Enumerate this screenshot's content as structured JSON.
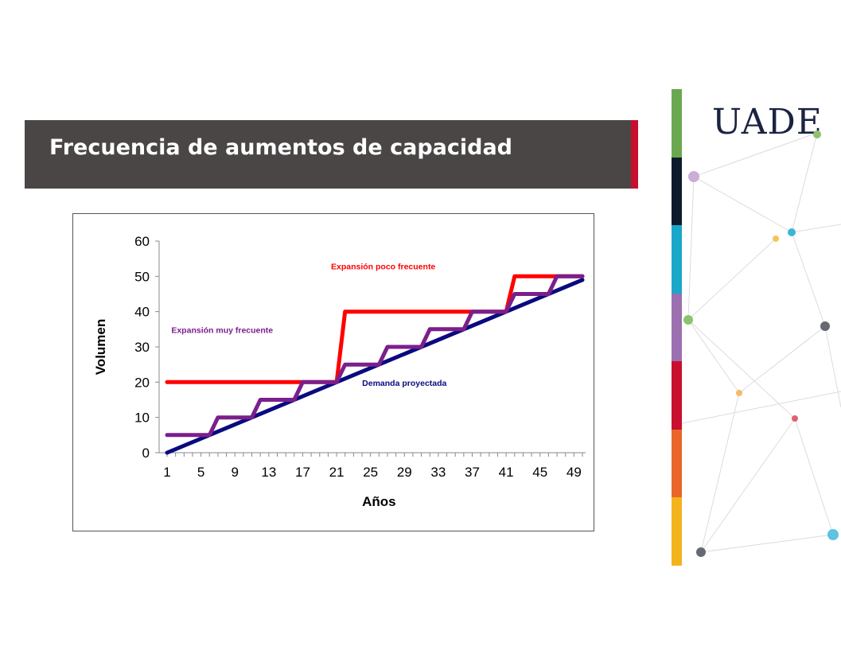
{
  "slide": {
    "title": "Frecuencia de aumentos de capacidad",
    "logo_text": "UADE",
    "accent_color": "#c8102e",
    "stripe_colors": [
      "#6aa84f",
      "#0f1b2d",
      "#1aa7c9",
      "#9b6fb0",
      "#c8102e",
      "#e8662a",
      "#f3b31d"
    ]
  },
  "chart_data": {
    "type": "line",
    "xlabel": "Años",
    "ylabel": "Volumen",
    "xlim": [
      1,
      50
    ],
    "ylim": [
      0,
      60
    ],
    "xticks": [
      "1",
      "5",
      "9",
      "13",
      "17",
      "21",
      "25",
      "29",
      "33",
      "37",
      "41",
      "45",
      "49"
    ],
    "yticks": [
      "0",
      "10",
      "20",
      "30",
      "40",
      "50",
      "60"
    ],
    "grid": false,
    "series": [
      {
        "name": "Expansión poco frecuente",
        "color": "#ff0000",
        "points": [
          [
            1,
            20
          ],
          [
            21,
            20
          ],
          [
            22,
            40
          ],
          [
            41,
            40
          ],
          [
            42,
            50
          ],
          [
            50,
            50
          ]
        ]
      },
      {
        "name": "Expansión muy frecuente",
        "color": "#7b1f8c",
        "points": [
          [
            1,
            5
          ],
          [
            6,
            5
          ],
          [
            7,
            10
          ],
          [
            11,
            10
          ],
          [
            12,
            15
          ],
          [
            16,
            15
          ],
          [
            17,
            20
          ],
          [
            21,
            20
          ],
          [
            22,
            25
          ],
          [
            26,
            25
          ],
          [
            27,
            30
          ],
          [
            31,
            30
          ],
          [
            32,
            35
          ],
          [
            36,
            35
          ],
          [
            37,
            40
          ],
          [
            41,
            40
          ],
          [
            42,
            45
          ],
          [
            46,
            45
          ],
          [
            47,
            50
          ],
          [
            50,
            50
          ]
        ]
      },
      {
        "name": "Demanda proyectada",
        "color": "#0a0a80",
        "points": [
          [
            1,
            0
          ],
          [
            50,
            49
          ]
        ]
      }
    ],
    "annotations": [
      {
        "text": "Expansión poco frecuente",
        "x": 26.5,
        "y": 52,
        "color": "#ff0000"
      },
      {
        "text": "Expansión muy frecuente",
        "x": 7.5,
        "y": 34,
        "color": "#7b1f8c"
      },
      {
        "text": "Demanda proyectada",
        "x": 29,
        "y": 19,
        "color": "#0a0a80"
      }
    ]
  }
}
